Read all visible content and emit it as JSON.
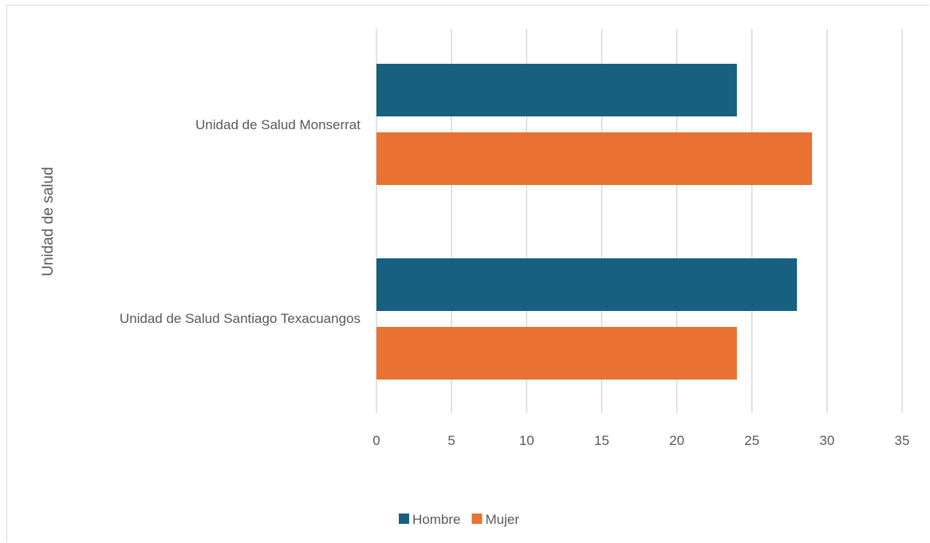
{
  "chart_data": {
    "type": "bar",
    "orientation": "horizontal",
    "categories": [
      "Unidad de Salud Monserrat",
      "Unidad de Salud Santiago Texacuangos"
    ],
    "series": [
      {
        "name": "Hombre",
        "values": [
          24,
          28
        ],
        "color": "#17607f"
      },
      {
        "name": "Mujer",
        "values": [
          29,
          24
        ],
        "color": "#e97132"
      }
    ],
    "title": "",
    "xlabel": "",
    "ylabel": "Unidad de salud",
    "xlim": [
      0,
      35
    ],
    "xticks": [
      "0",
      "5",
      "10",
      "15",
      "20",
      "25",
      "30",
      "35"
    ],
    "grid": true,
    "legend_position": "bottom"
  }
}
